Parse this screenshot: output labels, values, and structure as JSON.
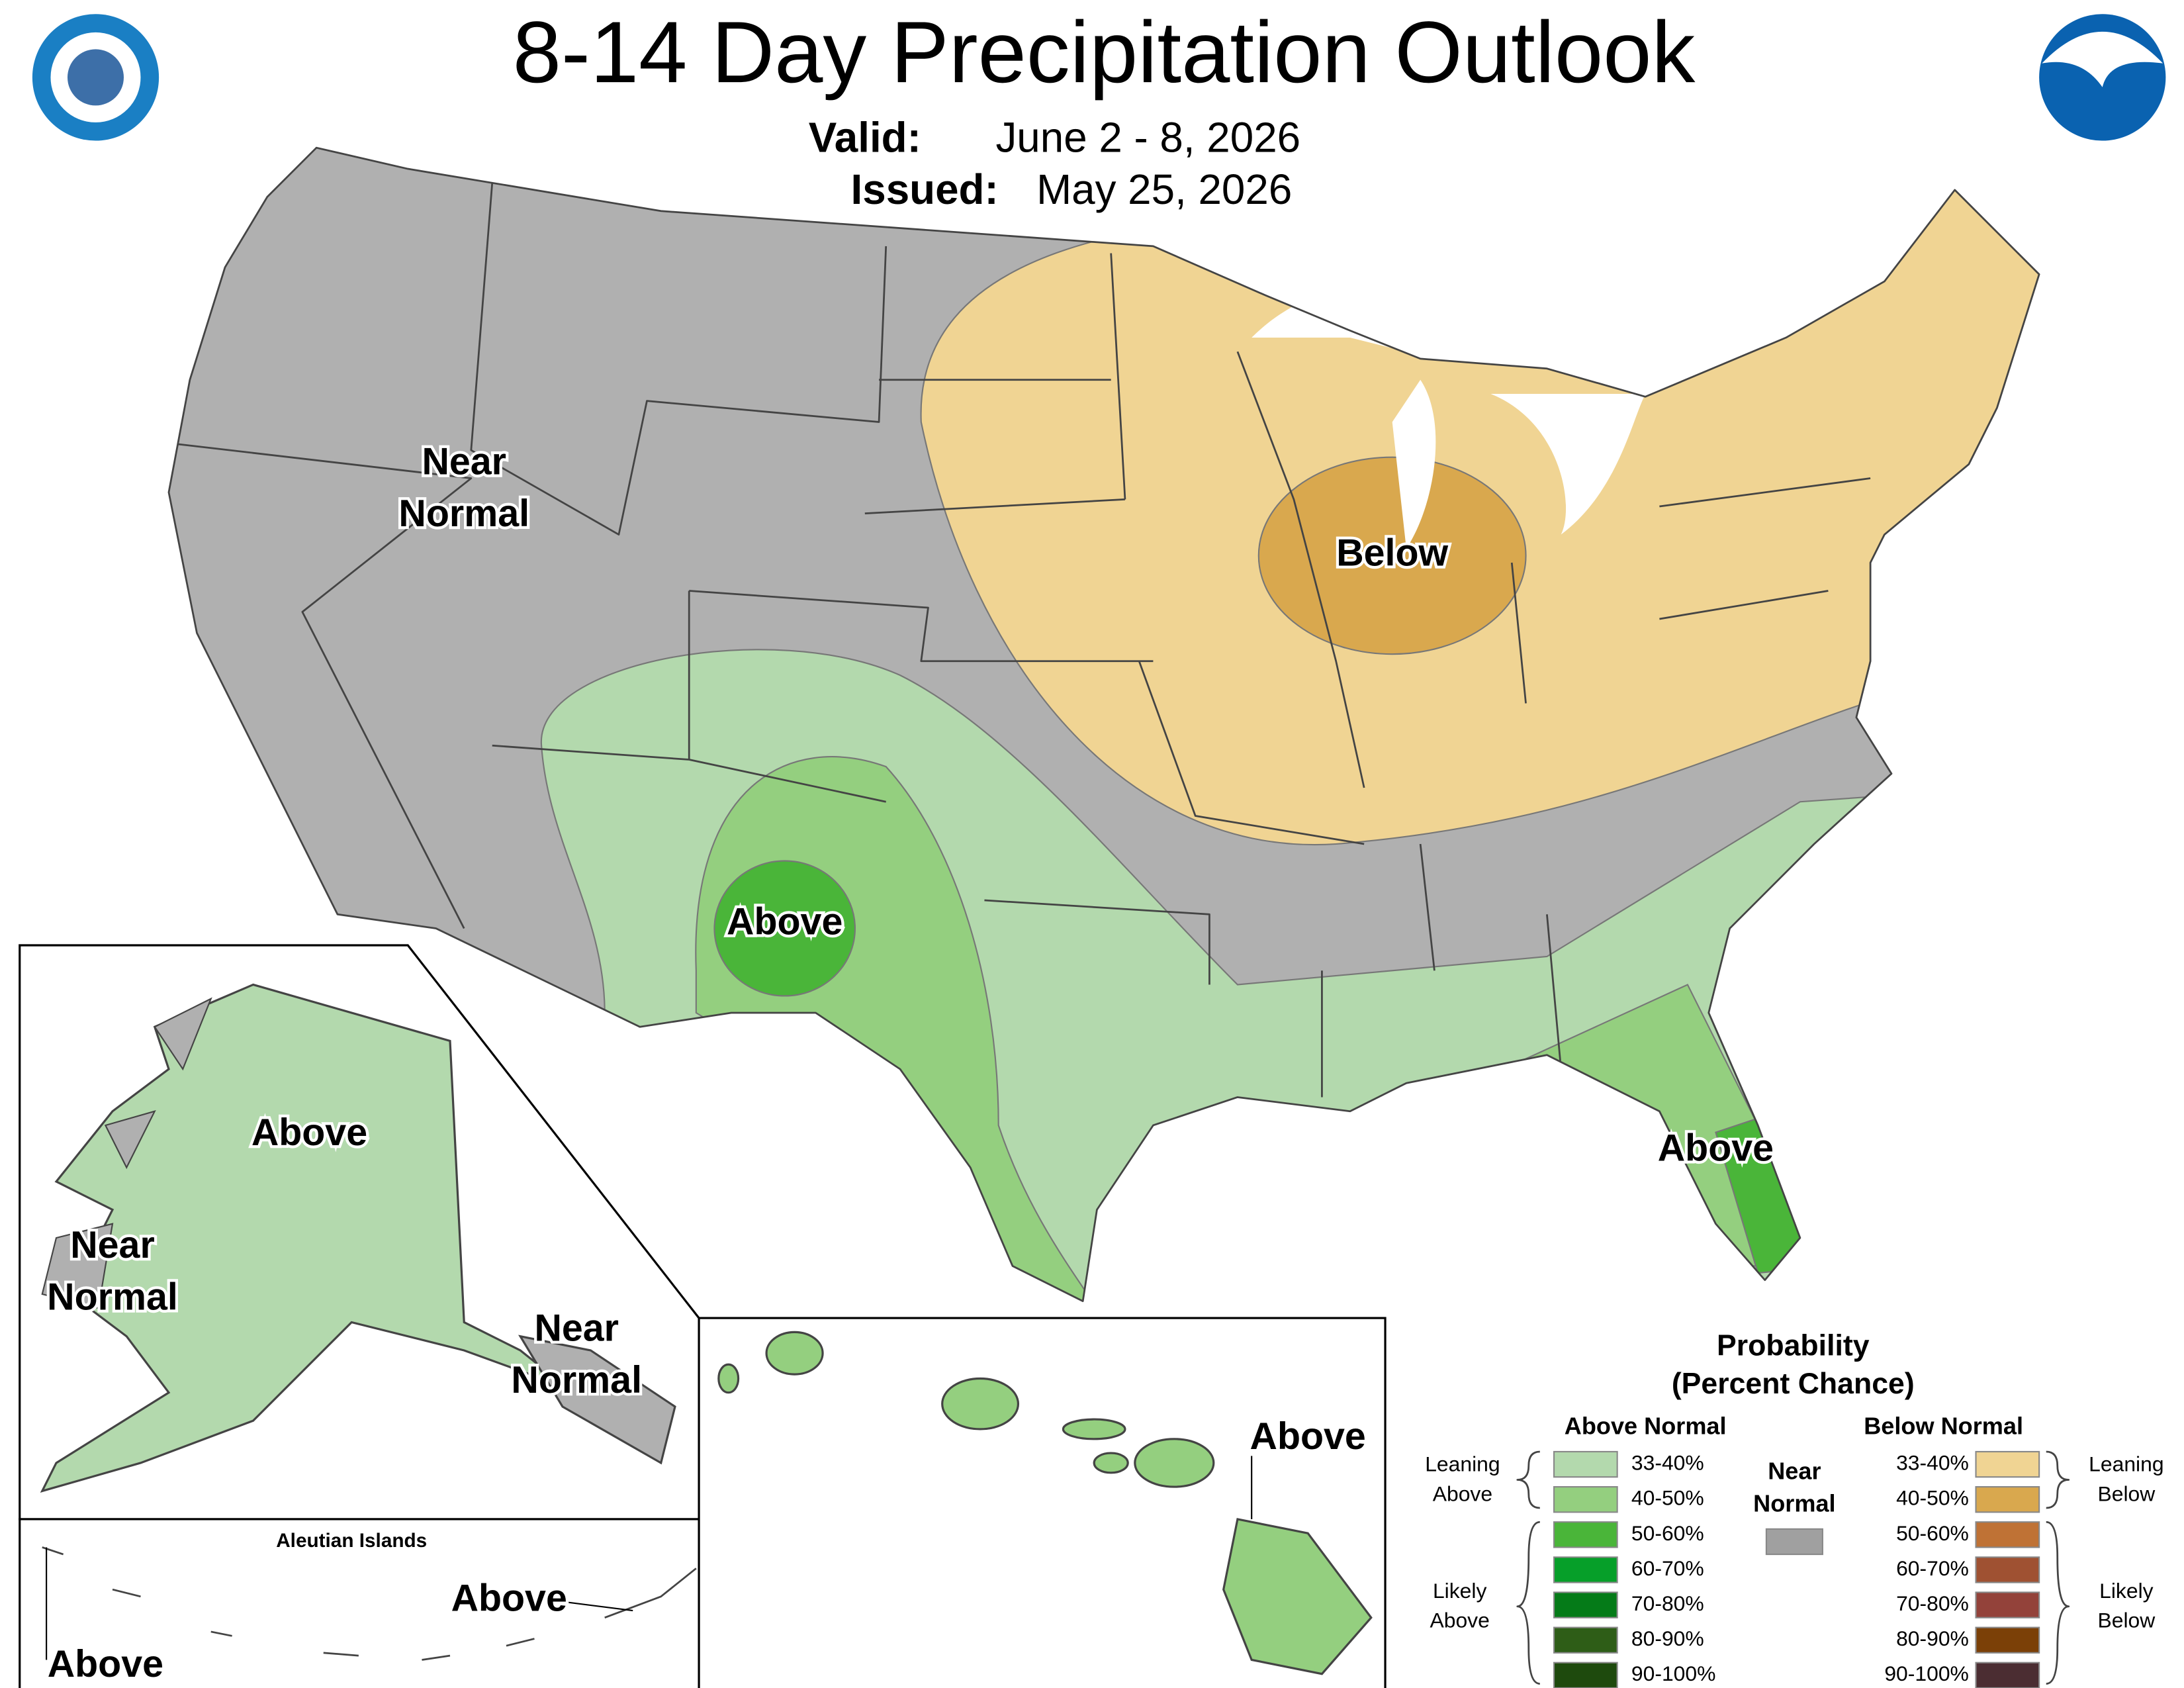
{
  "header": {
    "title": "8-14 Day Precipitation Outlook",
    "valid_label": "Valid:",
    "valid": "June 2 - 8, 2026",
    "issued_label": "Issued:",
    "issued": "May 25, 2026"
  },
  "map_labels": [
    [
      "Near",
      "Normal"
    ],
    [
      "Below"
    ],
    [
      "Above"
    ],
    [
      "Above"
    ],
    [
      "Above"
    ],
    [
      "Near",
      "Normal"
    ],
    [
      "Near",
      "Normal"
    ],
    [
      "Above"
    ],
    [
      "Above"
    ],
    [
      "Above"
    ]
  ],
  "aleutian_title": "Aleutian Islands",
  "legend": {
    "title": [
      "Probability",
      "(Percent Chance)"
    ],
    "above_header": "Above Normal",
    "below_header": "Below Normal",
    "near": [
      "Near",
      "Normal"
    ],
    "near_color": "#a0a0a0",
    "above": [
      {
        "range": "33-40%",
        "color": "#b3d9ad"
      },
      {
        "range": "40-50%",
        "color": "#94cf7f"
      },
      {
        "range": "50-60%",
        "color": "#4ab539"
      },
      {
        "range": "60-70%",
        "color": "#069f29"
      },
      {
        "range": "70-80%",
        "color": "#057b18"
      },
      {
        "range": "80-90%",
        "color": "#2e5d17"
      },
      {
        "range": "90-100%",
        "color": "#1e4a0d"
      }
    ],
    "below": [
      {
        "range": "33-40%",
        "color": "#f0d493"
      },
      {
        "range": "40-50%",
        "color": "#d9a84e"
      },
      {
        "range": "50-60%",
        "color": "#bf7235"
      },
      {
        "range": "60-70%",
        "color": "#9f5132"
      },
      {
        "range": "70-80%",
        "color": "#93423a"
      },
      {
        "range": "80-90%",
        "color": "#7b4007"
      },
      {
        "range": "90-100%",
        "color": "#4b2d32"
      }
    ],
    "leaning_above": [
      "Leaning",
      "Above"
    ],
    "likely_above": [
      "Likely",
      "Above"
    ],
    "leaning_below": [
      "Leaning",
      "Below"
    ],
    "likely_below": [
      "Likely",
      "Below"
    ]
  }
}
